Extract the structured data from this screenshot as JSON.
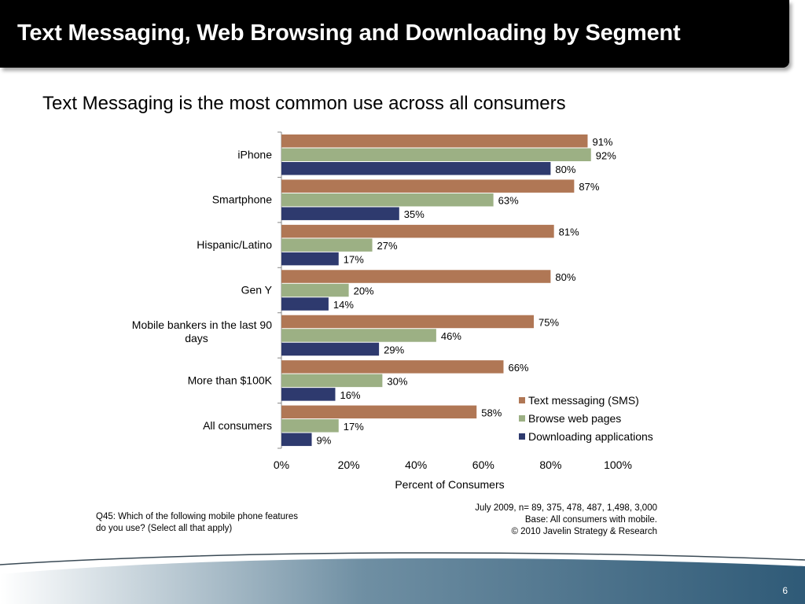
{
  "slide": {
    "title": "Text Messaging, Web Browsing and Downloading by Segment",
    "subtitle": "Text Messaging is the most common use across all consumers",
    "question": "Q45: Which of the following mobile phone features do you use? (Select all that apply)",
    "source_lines": [
      "July 2009, n= 89, 375, 478, 487, 1,498, 3,000",
      "Base: All consumers with mobile.",
      "© 2010 Javelin Strategy & Research"
    ],
    "page_number": "6"
  },
  "chart_data": {
    "type": "bar",
    "orientation": "horizontal",
    "categories": [
      "iPhone",
      "Smartphone",
      "Hispanic/Latino",
      "Gen Y",
      "Mobile bankers in the last 90 days",
      "More than $100K",
      "All consumers"
    ],
    "series": [
      {
        "name": "Text messaging (SMS)",
        "color": "#B07755",
        "values": [
          91,
          87,
          81,
          80,
          75,
          66,
          58
        ]
      },
      {
        "name": "Browse web pages",
        "color": "#9CB084",
        "values": [
          92,
          63,
          27,
          20,
          46,
          30,
          17
        ]
      },
      {
        "name": "Downloading applications",
        "color": "#2E3A6E",
        "values": [
          80,
          35,
          17,
          14,
          29,
          16,
          9
        ]
      }
    ],
    "value_suffix": "%",
    "xlim": [
      0,
      100
    ],
    "xticks": [
      0,
      20,
      40,
      60,
      80,
      100
    ],
    "xtick_labels": [
      "0%",
      "20%",
      "40%",
      "60%",
      "80%",
      "100%"
    ],
    "xlabel": "Percent of Consumers",
    "ylabel": "",
    "legend_position": "bottom-right",
    "grid": false
  }
}
